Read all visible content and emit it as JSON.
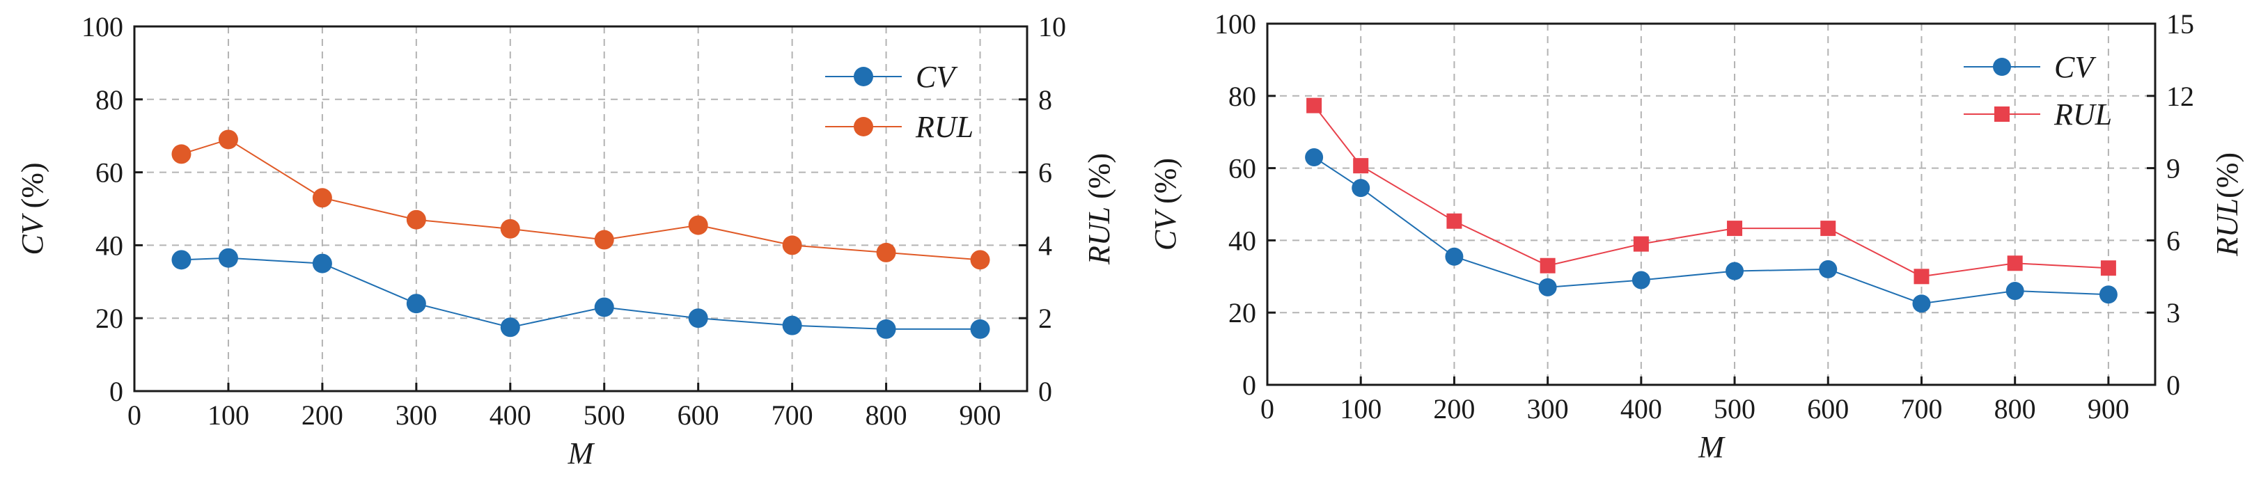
{
  "chart_data": [
    {
      "type": "line",
      "x": [
        50,
        100,
        200,
        300,
        400,
        500,
        600,
        700,
        800,
        900
      ],
      "xlabel": "M",
      "xlim": [
        0,
        950
      ],
      "xticks": [
        0,
        100,
        200,
        300,
        400,
        500,
        600,
        700,
        800,
        900
      ],
      "ylabel_left": "CV (%)",
      "ylim_left": [
        0,
        100
      ],
      "yticks_left": [
        0,
        20,
        40,
        60,
        80,
        100
      ],
      "ylabel_right": "RUL (%)",
      "ylim_right": [
        0,
        10
      ],
      "yticks_right": [
        0,
        2,
        4,
        6,
        8,
        10
      ],
      "grid": true,
      "legend_position": "top-right",
      "series": [
        {
          "name": "CV",
          "axis": "left",
          "marker": "circle",
          "color": "#1f6fb2",
          "values": [
            36,
            36.5,
            35,
            24,
            17.5,
            23,
            20,
            18,
            17,
            17
          ]
        },
        {
          "name": "RUL",
          "axis": "right",
          "marker": "circle",
          "color": "#e05a27",
          "values": [
            6.5,
            6.9,
            5.3,
            4.7,
            4.45,
            4.15,
            4.55,
            4.0,
            3.8,
            3.6
          ]
        }
      ]
    },
    {
      "type": "line",
      "x": [
        50,
        100,
        200,
        300,
        400,
        500,
        600,
        700,
        800,
        900
      ],
      "xlabel": "M",
      "xlim": [
        0,
        950
      ],
      "xticks": [
        0,
        100,
        200,
        300,
        400,
        500,
        600,
        700,
        800,
        900
      ],
      "ylabel_left": "CV (%)",
      "ylim_left": [
        0,
        100
      ],
      "yticks_left": [
        0,
        20,
        40,
        60,
        80,
        100
      ],
      "ylabel_right": "RUL(%)",
      "ylim_right": [
        0,
        15
      ],
      "yticks_right": [
        0,
        3,
        6,
        9,
        12,
        15
      ],
      "grid": true,
      "legend_position": "top-right",
      "series": [
        {
          "name": "CV",
          "axis": "left",
          "marker": "circle",
          "color": "#1f6fb2",
          "values": [
            63,
            54.5,
            35.5,
            27,
            29,
            31.5,
            32,
            22.5,
            26,
            25
          ]
        },
        {
          "name": "RUL",
          "axis": "right",
          "marker": "square",
          "color": "#e8414b",
          "values": [
            11.6,
            9.1,
            6.8,
            4.95,
            5.85,
            6.5,
            6.5,
            4.5,
            5.05,
            4.85
          ]
        }
      ]
    }
  ]
}
